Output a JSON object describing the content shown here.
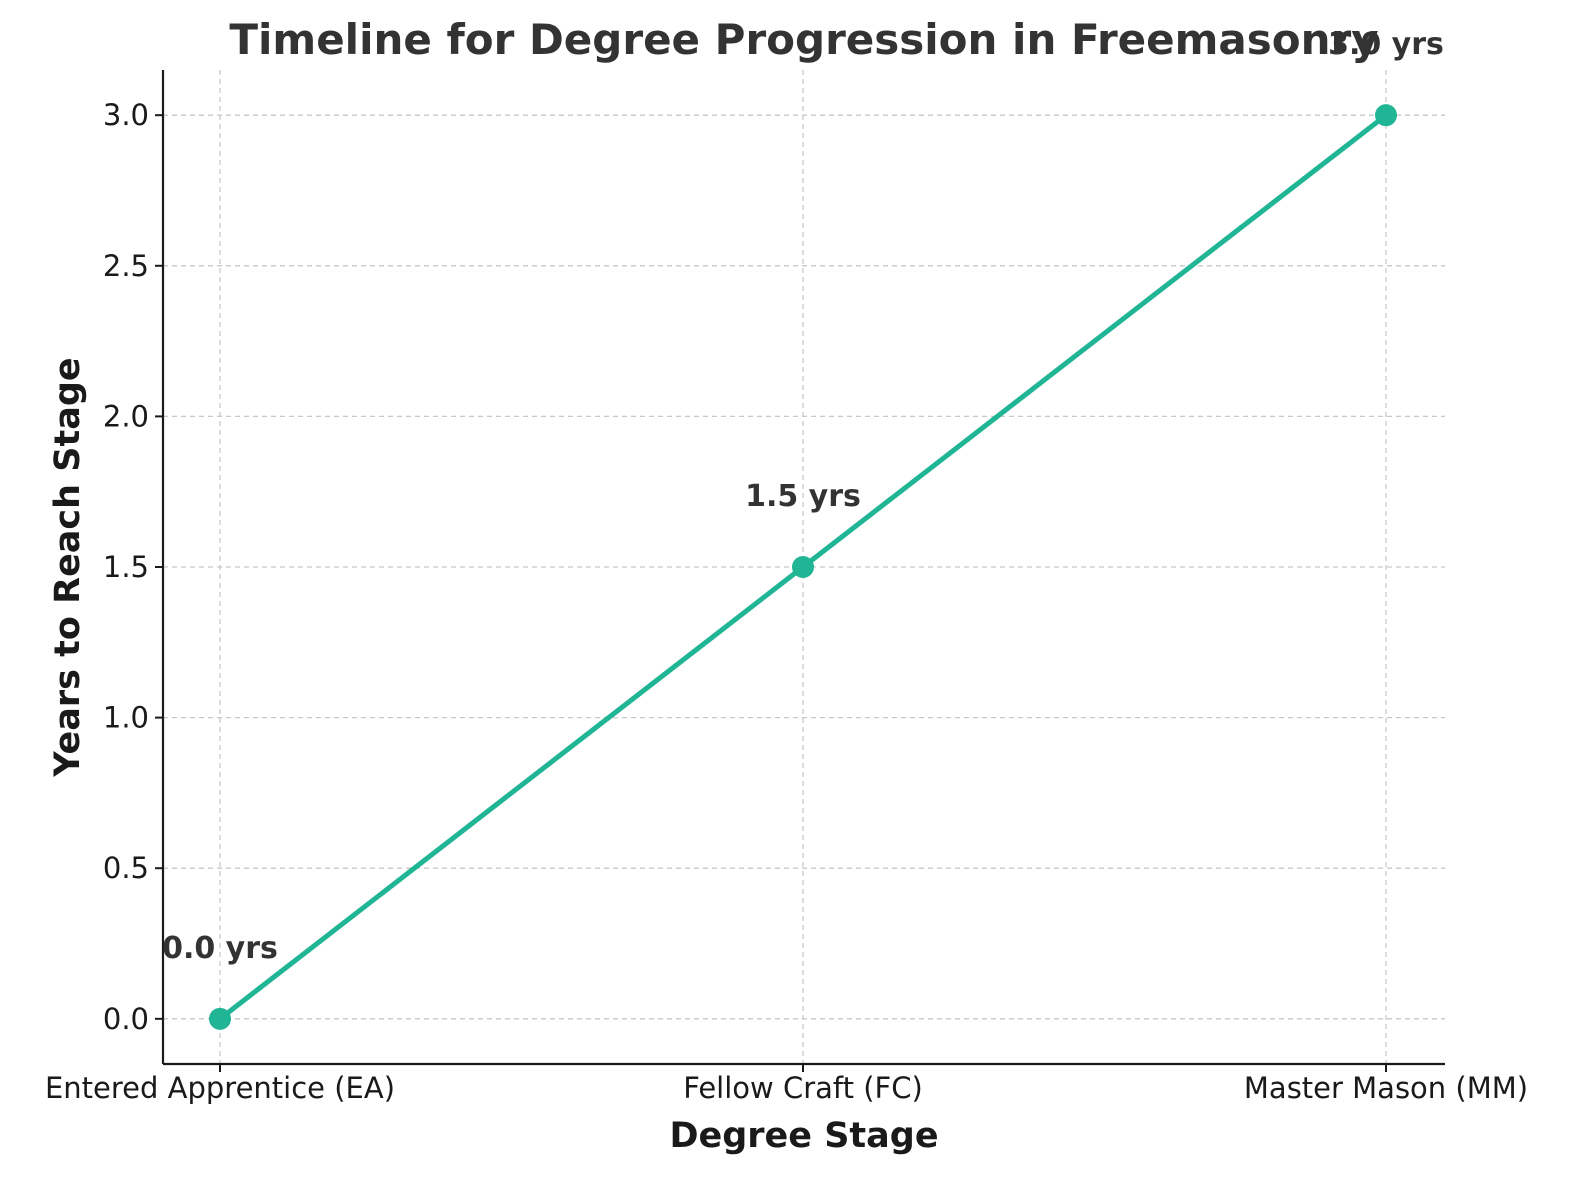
{
  "chart_data": {
    "type": "line",
    "title": "Timeline for Degree Progression in Freemasonry",
    "xlabel": "Degree Stage",
    "ylabel": "Years to Reach Stage",
    "categories": [
      "Entered Apprentice (EA)",
      "Fellow Craft (FC)",
      "Master Mason (MM)"
    ],
    "values": [
      0.0,
      1.5,
      3.0
    ],
    "data_labels": [
      "0.0 yrs",
      "1.5 yrs",
      "3.0 yrs"
    ],
    "ylim": [
      -0.15,
      3.15
    ],
    "yticks": [
      0.0,
      0.5,
      1.0,
      1.5,
      2.0,
      2.5,
      3.0
    ],
    "ytick_labels": [
      "0.0",
      "0.5",
      "1.0",
      "1.5",
      "2.0",
      "2.5",
      "3.0"
    ],
    "grid": true,
    "color": "#20b595"
  }
}
